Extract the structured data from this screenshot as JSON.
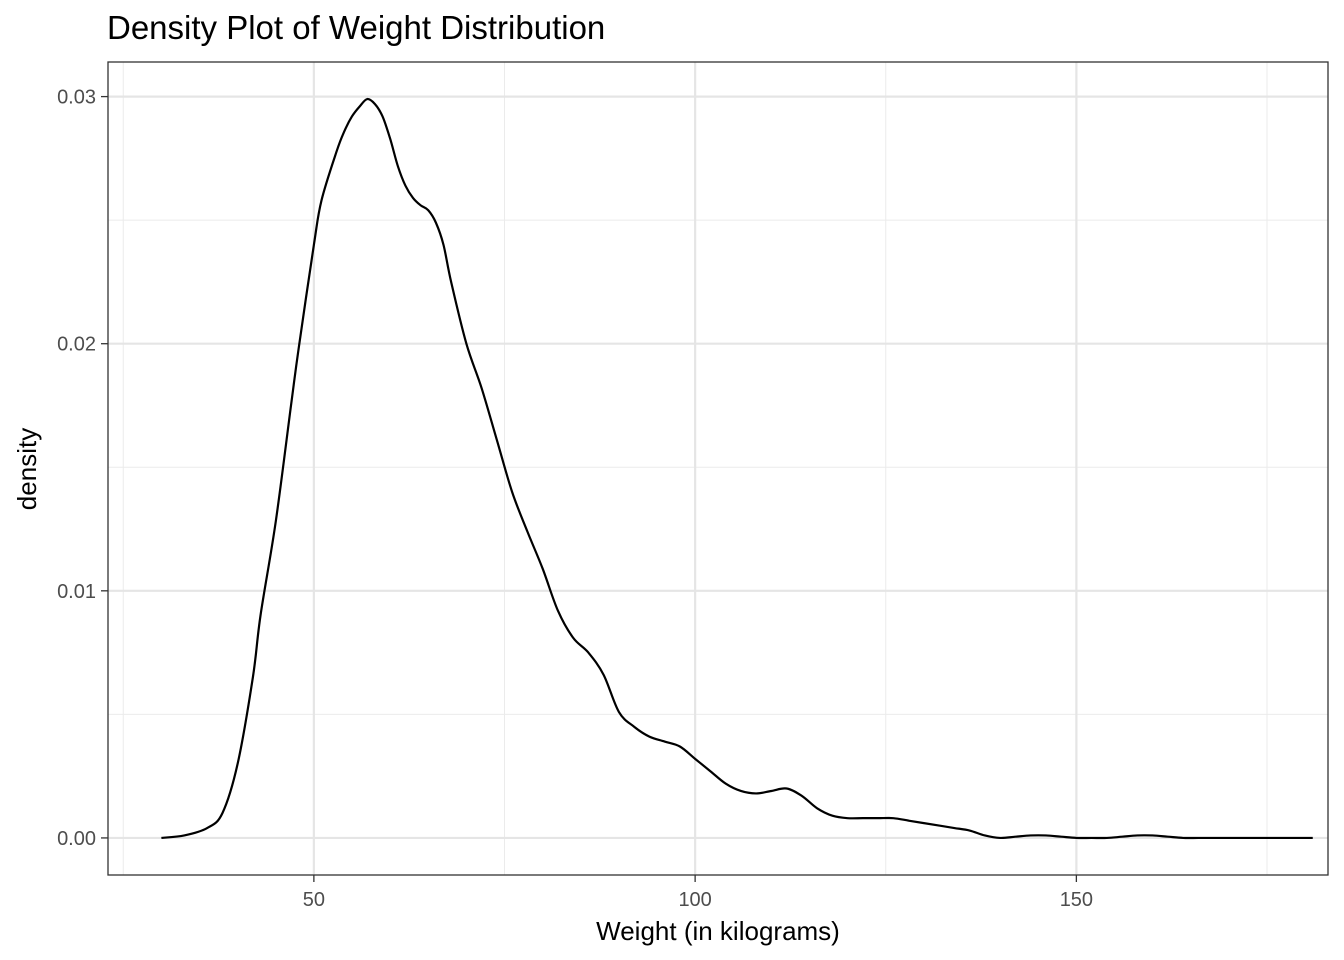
{
  "chart_data": {
    "type": "line",
    "title": "Density Plot of Weight Distribution",
    "xlabel": "Weight (in kilograms)",
    "ylabel": "density",
    "xlim": [
      23,
      183
    ],
    "ylim": [
      -0.0015,
      0.0314
    ],
    "x_ticks": [
      {
        "value": 50,
        "label": "50"
      },
      {
        "value": 100,
        "label": "100"
      },
      {
        "value": 150,
        "label": "150"
      }
    ],
    "y_ticks": [
      {
        "value": 0.0,
        "label": "0.00"
      },
      {
        "value": 0.01,
        "label": "0.01"
      },
      {
        "value": 0.02,
        "label": "0.02"
      },
      {
        "value": 0.03,
        "label": "0.03"
      }
    ],
    "x_minor_ticks": [
      25,
      75,
      125,
      175
    ],
    "y_minor_ticks": [
      0.005,
      0.015,
      0.025
    ],
    "grid": true,
    "legend": "none",
    "line_color": "#000000",
    "series": [
      {
        "x": [
          30,
          33,
          36,
          38,
          40,
          42,
          43,
          45,
          47,
          48,
          50,
          51,
          53,
          54,
          55,
          56,
          57,
          58,
          59,
          60,
          61,
          62,
          63,
          64,
          65,
          66,
          67,
          68,
          70,
          72,
          74,
          76,
          78,
          80,
          82,
          84,
          86,
          88,
          90,
          92,
          94,
          96,
          98,
          100,
          102,
          104,
          106,
          108,
          110,
          112,
          114,
          116,
          118,
          120,
          122,
          124,
          126,
          128,
          130,
          132,
          134,
          136,
          138,
          140,
          142,
          144,
          146,
          148,
          150,
          152,
          154,
          156,
          158,
          160,
          162,
          164,
          166,
          168,
          170,
          172,
          174,
          176,
          178,
          180,
          181
        ],
        "y": [
          0.0,
          0.0001,
          0.0004,
          0.001,
          0.003,
          0.0065,
          0.009,
          0.0128,
          0.0175,
          0.0198,
          0.024,
          0.0258,
          0.0278,
          0.0286,
          0.0292,
          0.0296,
          0.0299,
          0.0297,
          0.0292,
          0.0283,
          0.0272,
          0.0264,
          0.0259,
          0.0256,
          0.0254,
          0.0249,
          0.024,
          0.0225,
          0.02,
          0.0182,
          0.0161,
          0.014,
          0.0124,
          0.0109,
          0.0092,
          0.0081,
          0.0075,
          0.0066,
          0.0051,
          0.0045,
          0.0041,
          0.0039,
          0.0037,
          0.0032,
          0.0027,
          0.0022,
          0.0019,
          0.0018,
          0.0019,
          0.002,
          0.0017,
          0.0012,
          0.0009,
          0.0008,
          0.0008,
          0.0008,
          0.0008,
          0.0007,
          0.0006,
          0.0005,
          0.0004,
          0.0003,
          0.0001,
          0.0,
          5e-05,
          0.0001,
          0.0001,
          5e-05,
          0.0,
          0.0,
          0.0,
          5e-05,
          0.0001,
          0.0001,
          5e-05,
          0.0,
          0.0,
          0.0,
          0.0,
          0.0,
          0.0,
          0.0,
          0.0,
          0.0,
          0.0
        ]
      }
    ]
  }
}
